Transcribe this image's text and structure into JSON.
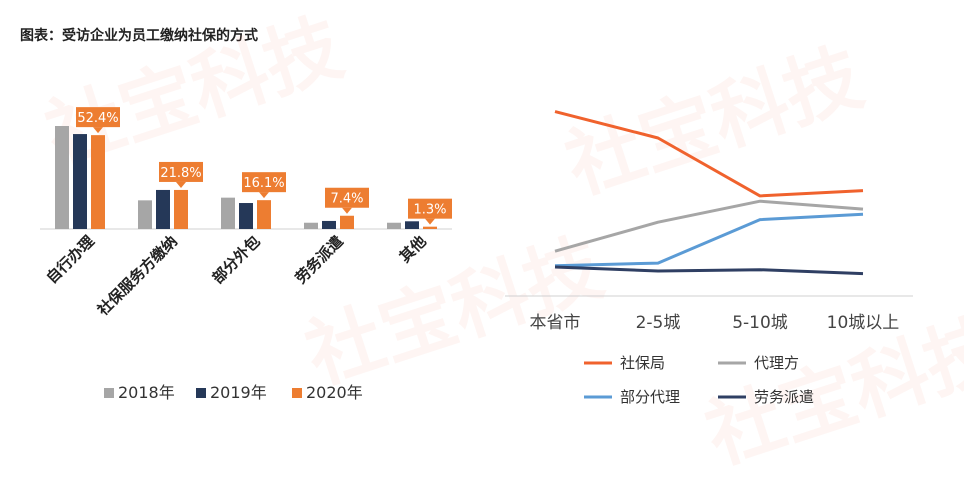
{
  "title": "图表：受访企业为员工缴纳社保的方式",
  "watermark": "社宝科技",
  "colors": {
    "y2018": "#a6a6a6",
    "y2019": "#253858",
    "y2020": "#ed7d31",
    "sbj": "#f0622d",
    "dlf": "#a6a6a6",
    "bfdl": "#5b9bd5",
    "lwpq": "#2f3f63"
  },
  "chart_data": [
    {
      "type": "bar",
      "title": "",
      "categories": [
        "自行办理",
        "社保服务方缴纳",
        "部分外包",
        "劳务派遣",
        "其他"
      ],
      "series": [
        {
          "name": "2018年",
          "values": [
            57.5,
            16.0,
            17.5,
            3.5,
            3.5
          ]
        },
        {
          "name": "2019年",
          "values": [
            53.0,
            21.8,
            14.5,
            4.5,
            4.3
          ]
        },
        {
          "name": "2020年",
          "values": [
            52.4,
            21.8,
            16.1,
            7.4,
            1.3
          ]
        }
      ],
      "data_labels": [
        "52.4%",
        "21.8%",
        "16.1%",
        "7.4%",
        "1.3%"
      ],
      "ylim": [
        0,
        60
      ],
      "legend_position": "bottom"
    },
    {
      "type": "line",
      "title": "",
      "categories": [
        "本省市",
        "2-5城",
        "5-10城",
        "10城以上"
      ],
      "series": [
        {
          "name": "社保局",
          "values": [
            70,
            60,
            38,
            40
          ]
        },
        {
          "name": "代理方",
          "values": [
            17,
            28,
            36,
            33
          ]
        },
        {
          "name": "部分代理",
          "values": [
            11.5,
            12.5,
            29,
            31
          ]
        },
        {
          "name": "劳务派遣",
          "values": [
            11,
            9.5,
            10,
            8.5
          ]
        }
      ],
      "ylim": [
        0,
        82
      ],
      "legend_position": "bottom"
    }
  ]
}
